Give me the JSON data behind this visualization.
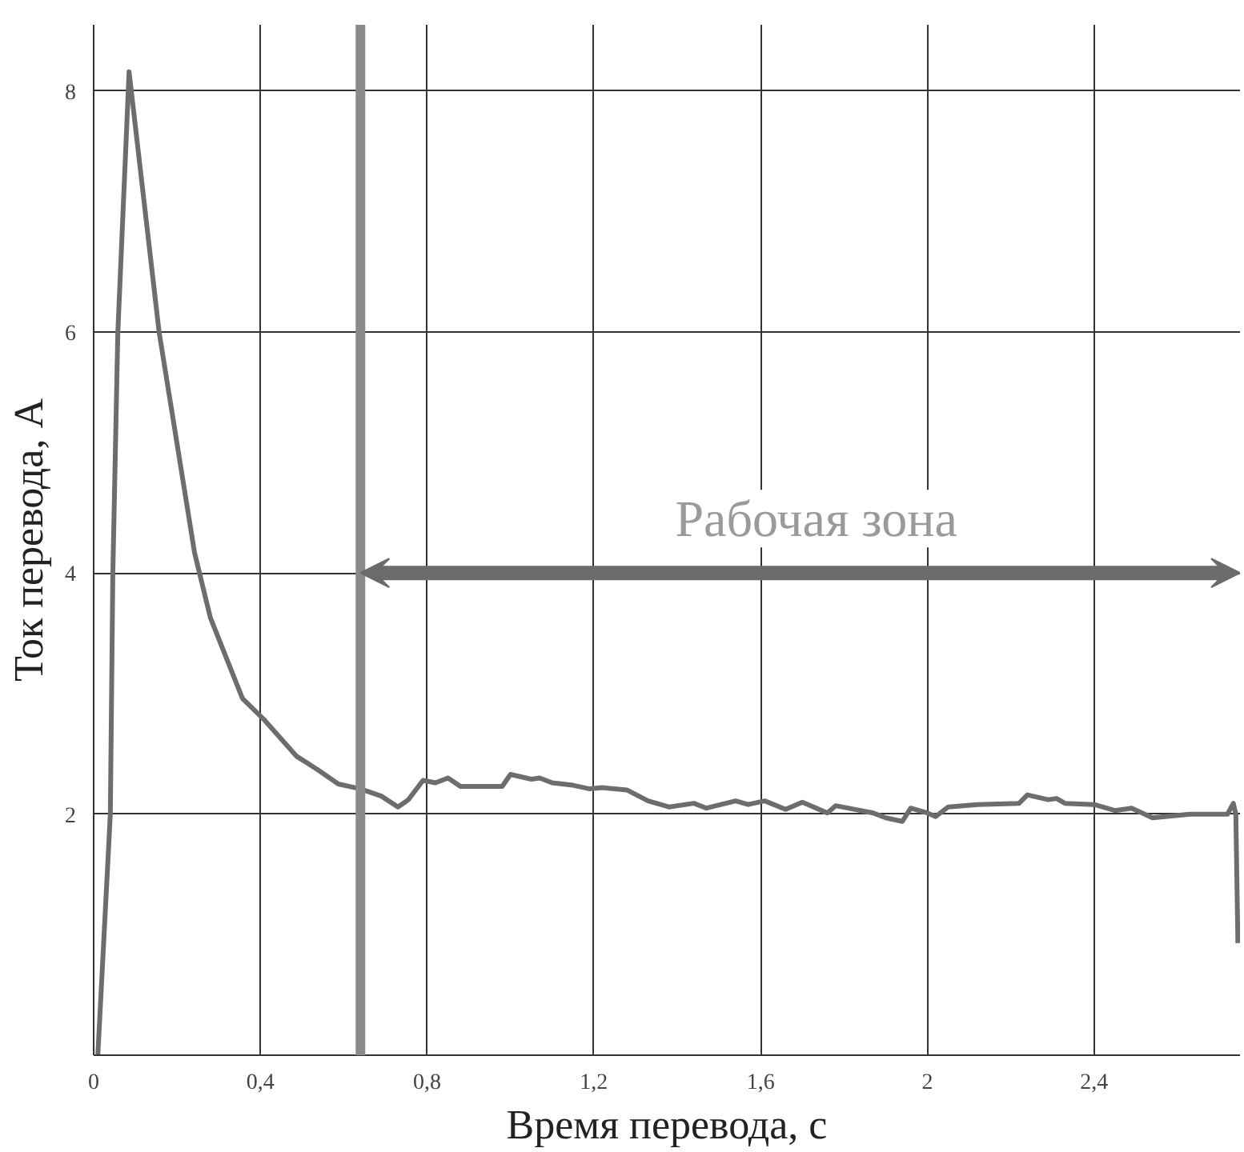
{
  "chart_data": {
    "type": "line",
    "xlabel": "Время перевода, с",
    "ylabel": "Ток перевода, А",
    "xlim": [
      0,
      2.75
    ],
    "ylim": [
      0,
      8.55
    ],
    "xticks": [
      0,
      {
        "value": 0.4,
        "label": "0,4"
      },
      {
        "value": 0.8,
        "label": "0,8"
      },
      {
        "value": 1.2,
        "label": "1,2"
      },
      {
        "value": 1.6,
        "label": "1,6"
      },
      2,
      {
        "value": 2.4,
        "label": "2,4"
      }
    ],
    "yticks": [
      2,
      4,
      6,
      8
    ],
    "grid": true,
    "line_style": "solid",
    "x": [
      0.01,
      0.04,
      0.046,
      0.058,
      0.085,
      0.157,
      0.242,
      0.28,
      0.357,
      0.41,
      0.487,
      0.537,
      0.587,
      0.64,
      0.69,
      0.73,
      0.755,
      0.79,
      0.82,
      0.85,
      0.88,
      0.98,
      1.0,
      1.05,
      1.07,
      1.1,
      1.15,
      1.19,
      1.22,
      1.28,
      1.33,
      1.38,
      1.44,
      1.47,
      1.54,
      1.57,
      1.61,
      1.66,
      1.7,
      1.76,
      1.78,
      1.87,
      1.9,
      1.94,
      1.96,
      2.0,
      2.02,
      2.05,
      2.12,
      2.22,
      2.24,
      2.29,
      2.31,
      2.33,
      2.4,
      2.45,
      2.49,
      2.54,
      2.63,
      2.72,
      2.734,
      2.74,
      2.745
    ],
    "series": [
      {
        "color": "#6d6d6d",
        "values": [
          0.0,
          2.0,
          4.0,
          6.0,
          8.16,
          6.0,
          4.17,
          3.63,
          2.96,
          2.78,
          2.48,
          2.37,
          2.25,
          2.21,
          2.15,
          2.06,
          2.12,
          2.28,
          2.26,
          2.3,
          2.23,
          2.23,
          2.33,
          2.29,
          2.3,
          2.26,
          2.24,
          2.21,
          2.22,
          2.2,
          2.11,
          2.06,
          2.09,
          2.05,
          2.11,
          2.08,
          2.11,
          2.04,
          2.1,
          2.01,
          2.07,
          2.01,
          1.97,
          1.94,
          2.05,
          2.01,
          1.98,
          2.06,
          2.08,
          2.09,
          2.16,
          2.12,
          2.13,
          2.09,
          2.08,
          2.03,
          2.05,
          1.97,
          2.0,
          2.0,
          2.09,
          2.0,
          0.93
        ]
      }
    ],
    "ref_lines": [
      {
        "axis": "x",
        "value": 0.64,
        "label": null,
        "color": "#8a8a8c"
      }
    ],
    "annotations": [
      "Рабочая зона"
    ]
  }
}
